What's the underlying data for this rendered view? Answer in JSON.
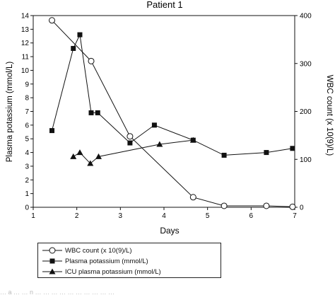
{
  "chart_data": {
    "type": "line",
    "title": "Patient 1",
    "xlabel": "Days",
    "ylabel": "Plasma potassium (mmol/L)",
    "y2label": "WBC count (x 10(9)/L)",
    "xlim": [
      1,
      7
    ],
    "ylim": [
      0,
      14
    ],
    "y2lim": [
      0,
      400
    ],
    "xticks": [
      "1",
      "2",
      "3",
      "4",
      "5",
      "6",
      "7"
    ],
    "yticks": [
      "0",
      "1",
      "2",
      "3",
      "4",
      "5",
      "6",
      "7",
      "8",
      "9",
      "10",
      "11",
      "12",
      "13",
      "14"
    ],
    "y2ticks": [
      "0",
      "100",
      "200",
      "300",
      "400"
    ],
    "grid": false,
    "series": [
      {
        "name": "WBC count (x 10(9)/L)",
        "axis": "right",
        "marker": "circle-open",
        "x": [
          1.43,
          2.33,
          3.22,
          4.67,
          5.38,
          6.35,
          6.95
        ],
        "y": [
          390,
          305,
          148,
          21,
          3,
          3,
          1
        ]
      },
      {
        "name": "Plasma potassium (mmol/L)",
        "axis": "left",
        "marker": "square-filled",
        "x": [
          1.43,
          1.92,
          2.07,
          2.33,
          2.48,
          3.22,
          3.78,
          4.67,
          5.38,
          6.35,
          6.95
        ],
        "y": [
          5.6,
          11.6,
          12.6,
          6.9,
          6.9,
          4.7,
          6.0,
          4.9,
          3.8,
          4.0,
          4.3
        ]
      },
      {
        "name": "ICU plasma potassium (mmol/L)",
        "axis": "left",
        "marker": "triangle-filled",
        "x": [
          1.92,
          2.07,
          2.31,
          2.5,
          3.9,
          4.67
        ],
        "y": [
          3.7,
          4.0,
          3.2,
          3.7,
          4.6,
          4.9
        ]
      }
    ]
  },
  "caption": "… a … … n … … … … … … … … … …"
}
